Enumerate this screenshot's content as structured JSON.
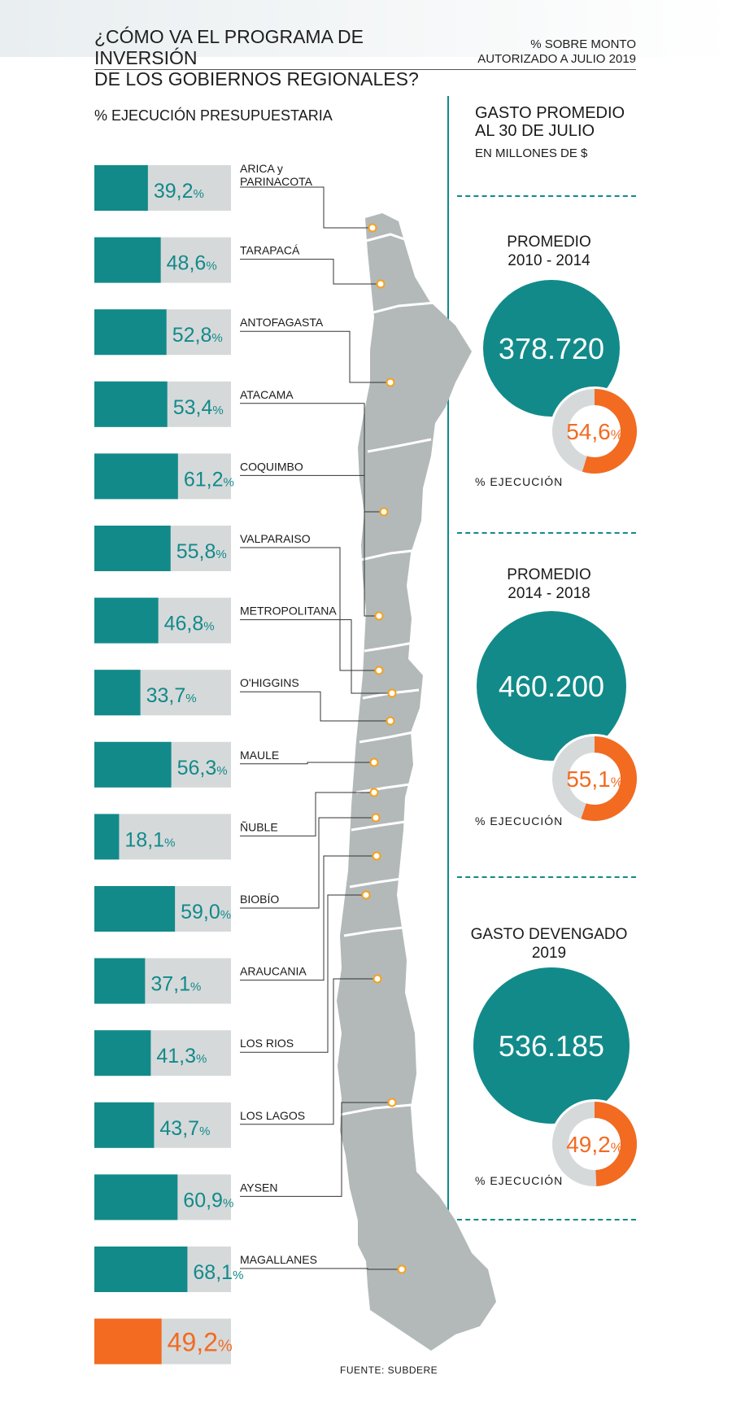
{
  "header": {
    "title_line1": "¿CÓMO VA EL PROGRAMA DE INVERSIÓN",
    "title_line2": "DE LOS GOBIERNOS REGIONALES?",
    "subtitle_line1": "% SOBRE MONTO",
    "subtitle_line2": "AUTORIZADO A JULIO 2019"
  },
  "left_heading": "% EJECUCIÓN PRESUPUESTARIA",
  "right_panel": {
    "heading_line1": "GASTO PROMEDIO",
    "heading_line2": "AL 30 DE JULIO",
    "heading_small": "EN MILLONES DE $",
    "exec_label": "% EJECUCIÓN"
  },
  "footer": {
    "source": "FUENTE: SUBDERE"
  },
  "colors": {
    "teal": "#128a8a",
    "grey": "#d6d9da",
    "orange": "#f26b21",
    "map": "#b3b9b9"
  },
  "chart_data": [
    {
      "type": "bar",
      "title": "% EJECUCIÓN PRESUPUESTARIA",
      "categories": [
        "ARICA y PARINACOTA",
        "TARAPACÁ",
        "ANTOFAGASTA",
        "ATACAMA",
        "COQUIMBO",
        "VALPARAISO",
        "METROPOLITANA",
        "O'HIGGINS",
        "MAULE",
        "ÑUBLE",
        "BIOBÍO",
        "ARAUCANIA",
        "LOS RIOS",
        "LOS LAGOS",
        "AYSEN",
        "MAGALLANES",
        ""
      ],
      "values": [
        39.2,
        48.6,
        52.8,
        53.4,
        61.2,
        55.8,
        46.8,
        33.7,
        56.3,
        18.1,
        59.0,
        37.1,
        41.3,
        43.7,
        60.9,
        68.1,
        49.2
      ],
      "value_labels": [
        "39,2",
        "48,6",
        "52,8",
        "53,4",
        "61,2",
        "55,8",
        "46,8",
        "33,7",
        "56,3",
        "18,1",
        "59,0",
        "37,1",
        "41,3",
        "43,7",
        "60,9",
        "68,1",
        "49,2"
      ],
      "unit": "%",
      "highlight": [
        16
      ],
      "ylim": [
        0,
        100
      ]
    },
    {
      "type": "pie",
      "panels": [
        {
          "title_line1": "PROMEDIO",
          "title_line2": "2010 - 2014",
          "amount": "378.720",
          "execution": 54.6,
          "execution_label": "54,6"
        },
        {
          "title_line1": "PROMEDIO",
          "title_line2": "2014 - 2018",
          "amount": "460.200",
          "execution": 55.1,
          "execution_label": "55,1"
        },
        {
          "title_line1": "GASTO DEVENGADO",
          "title_line2": "2019",
          "amount": "536.185",
          "execution": 49.2,
          "execution_label": "49,2"
        }
      ]
    }
  ]
}
